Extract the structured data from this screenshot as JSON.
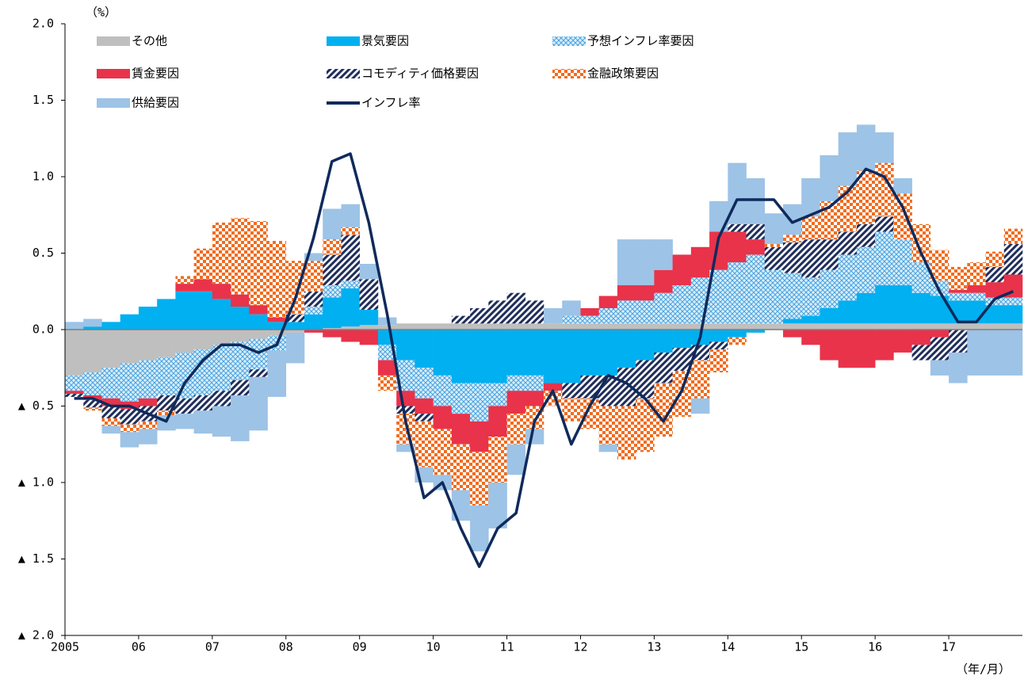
{
  "chart_data": {
    "type": "bar",
    "stacked": true,
    "y_unit_label": "（%）",
    "x_unit_label": "（年/月）",
    "categories": [
      "2005",
      null,
      null,
      null,
      "06",
      null,
      null,
      null,
      "07",
      null,
      null,
      null,
      "08",
      null,
      null,
      null,
      "09",
      null,
      null,
      null,
      "10",
      null,
      null,
      null,
      "11",
      null,
      null,
      null,
      "12",
      null,
      null,
      null,
      "13",
      null,
      null,
      null,
      "14",
      null,
      null,
      null,
      "15",
      null,
      null,
      null,
      "16",
      null,
      null,
      null,
      "17",
      null,
      null,
      null
    ],
    "ylim": [
      -2,
      2
    ],
    "yticks": [
      {
        "value": 2,
        "label": "2.0"
      },
      {
        "value": 1.5,
        "label": "1.5"
      },
      {
        "value": 1,
        "label": "1.0"
      },
      {
        "value": 0.5,
        "label": "0.5"
      },
      {
        "value": 0,
        "label": "0.0"
      },
      {
        "value": -0.5,
        "label": "▲ 0.5"
      },
      {
        "value": -1,
        "label": "▲ 1.0"
      },
      {
        "value": -1.5,
        "label": "▲ 1.5"
      },
      {
        "value": -2,
        "label": "▲ 2.0"
      }
    ],
    "series": [
      {
        "name": "その他",
        "color": "#bfbfbf",
        "values": [
          -0.3,
          -0.28,
          -0.25,
          -0.22,
          -0.2,
          -0.18,
          -0.15,
          -0.13,
          -0.1,
          -0.08,
          -0.06,
          -0.04,
          -0.02,
          0,
          0.01,
          0.02,
          0.03,
          0.03,
          0.04,
          0.04,
          0.04,
          0.04,
          0.04,
          0.04,
          0.04,
          0.04,
          0.04,
          0.04,
          0.04,
          0.04,
          0.04,
          0.04,
          0.04,
          0.04,
          0.04,
          0.04,
          0.04,
          0.04,
          0.04,
          0.04,
          0.04,
          0.04,
          0.04,
          0.04,
          0.04,
          0.04,
          0.04,
          0.04,
          0.04,
          0.04,
          0.04,
          0.04
        ]
      },
      {
        "name": "景気要因",
        "color": "#00b0f0",
        "values": [
          0,
          0.02,
          0.05,
          0.1,
          0.15,
          0.2,
          0.25,
          0.25,
          0.2,
          0.15,
          0.1,
          0.05,
          0.05,
          0.1,
          0.2,
          0.25,
          0.1,
          -0.1,
          -0.2,
          -0.25,
          -0.3,
          -0.35,
          -0.35,
          -0.35,
          -0.3,
          -0.3,
          -0.35,
          -0.35,
          -0.3,
          -0.3,
          -0.25,
          -0.2,
          -0.15,
          -0.12,
          -0.1,
          -0.08,
          -0.05,
          -0.02,
          0,
          0.03,
          0.05,
          0.1,
          0.15,
          0.2,
          0.25,
          0.25,
          0.2,
          0.18,
          0.15,
          0.15,
          0.12,
          0.12
        ]
      },
      {
        "name": "予想インフレ率要因",
        "color": "#4aa3df",
        "pattern": "crosshatch",
        "values": [
          -0.1,
          -0.15,
          -0.2,
          -0.25,
          -0.25,
          -0.25,
          -0.3,
          -0.3,
          -0.3,
          -0.25,
          -0.2,
          -0.1,
          0,
          0.05,
          0.08,
          0.05,
          0,
          -0.1,
          -0.2,
          -0.2,
          -0.2,
          -0.2,
          -0.25,
          -0.15,
          -0.1,
          -0.1,
          0,
          0.05,
          0.05,
          0.1,
          0.15,
          0.15,
          0.2,
          0.25,
          0.3,
          0.35,
          0.4,
          0.45,
          0.35,
          0.3,
          0.25,
          0.25,
          0.3,
          0.3,
          0.35,
          0.3,
          0.2,
          0.1,
          0.05,
          0.05,
          0.05,
          0.05
        ]
      },
      {
        "name": "賃金要因",
        "color": "#e8334a",
        "values": [
          -0.02,
          -0.03,
          -0.05,
          -0.05,
          -0.05,
          0,
          0.05,
          0.08,
          0.1,
          0.08,
          0.06,
          0.03,
          0,
          -0.02,
          -0.05,
          -0.08,
          -0.1,
          -0.1,
          -0.1,
          -0.1,
          -0.15,
          -0.2,
          -0.2,
          -0.2,
          -0.15,
          -0.1,
          -0.05,
          0,
          0.05,
          0.08,
          0.1,
          0.1,
          0.15,
          0.2,
          0.2,
          0.25,
          0.2,
          0.1,
          0,
          -0.05,
          -0.1,
          -0.2,
          -0.25,
          -0.25,
          -0.2,
          -0.15,
          -0.1,
          -0.05,
          0.02,
          0.05,
          0.1,
          0.15
        ]
      },
      {
        "name": "コモディティ価格要因",
        "color": "#1f2d5a",
        "pattern": "diagonal",
        "values": [
          -0.02,
          -0.05,
          -0.08,
          -0.1,
          -0.1,
          -0.1,
          -0.1,
          -0.1,
          -0.1,
          -0.1,
          -0.05,
          0,
          0.05,
          0.1,
          0.2,
          0.3,
          0.2,
          0,
          -0.05,
          -0.05,
          0,
          0.05,
          0.1,
          0.15,
          0.2,
          0.15,
          0,
          -0.1,
          -0.15,
          -0.2,
          -0.25,
          -0.25,
          -0.2,
          -0.15,
          -0.1,
          -0.05,
          0.05,
          0.1,
          0.15,
          0.2,
          0.25,
          0.2,
          0.15,
          0.15,
          0.1,
          0,
          -0.1,
          -0.15,
          -0.15,
          0,
          0.1,
          0.2
        ]
      },
      {
        "name": "金融政策要因",
        "color": "#f26b1d",
        "pattern": "checker",
        "values": [
          0,
          -0.02,
          -0.05,
          -0.05,
          -0.05,
          -0.03,
          0.05,
          0.2,
          0.4,
          0.5,
          0.55,
          0.5,
          0.35,
          0.2,
          0.1,
          0.05,
          0,
          -0.1,
          -0.2,
          -0.3,
          -0.3,
          -0.3,
          -0.35,
          -0.3,
          -0.2,
          -0.15,
          -0.1,
          -0.15,
          -0.2,
          -0.25,
          -0.35,
          -0.35,
          -0.35,
          -0.3,
          -0.25,
          -0.15,
          -0.05,
          0,
          0.02,
          0.05,
          0.15,
          0.25,
          0.3,
          0.35,
          0.35,
          0.3,
          0.25,
          0.2,
          0.15,
          0.15,
          0.1,
          0.1
        ]
      },
      {
        "name": "供給要因",
        "color": "#9dc3e6",
        "values": [
          0.05,
          0.05,
          -0.05,
          -0.1,
          -0.1,
          -0.1,
          -0.1,
          -0.15,
          -0.2,
          -0.3,
          -0.35,
          -0.3,
          -0.2,
          0.05,
          0.2,
          0.15,
          0.1,
          0.05,
          -0.05,
          -0.1,
          -0.1,
          -0.2,
          -0.3,
          -0.3,
          -0.2,
          -0.1,
          0.1,
          0.1,
          0,
          -0.05,
          0.3,
          0.3,
          0.2,
          0,
          -0.1,
          0.2,
          0.4,
          0.3,
          0.2,
          0.2,
          0.25,
          0.3,
          0.35,
          0.3,
          0.2,
          0.1,
          0,
          -0.1,
          -0.2,
          -0.3,
          -0.3,
          -0.3
        ]
      },
      {
        "name": "インフレ率",
        "type": "line",
        "color": "#0f2a5c",
        "values": [
          -0.45,
          -0.45,
          -0.5,
          -0.5,
          -0.55,
          -0.6,
          -0.35,
          -0.2,
          -0.1,
          -0.1,
          -0.15,
          -0.1,
          0.2,
          0.6,
          1.1,
          1.15,
          0.7,
          0.1,
          -0.6,
          -1.1,
          -1.0,
          -1.3,
          -1.55,
          -1.3,
          -1.2,
          -0.6,
          -0.4,
          -0.75,
          -0.5,
          -0.3,
          -0.35,
          -0.45,
          -0.6,
          -0.4,
          -0.05,
          0.6,
          0.85,
          0.85,
          0.85,
          0.7,
          0.75,
          0.8,
          0.9,
          1.05,
          1.0,
          0.8,
          0.5,
          0.25,
          0.05,
          0.05,
          0.2,
          0.25
        ]
      }
    ]
  }
}
